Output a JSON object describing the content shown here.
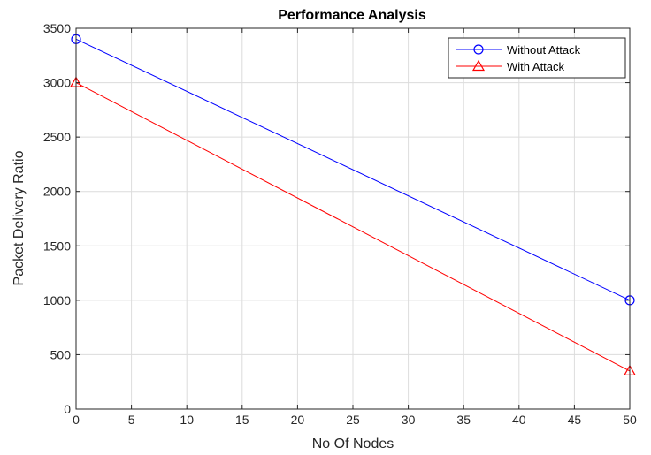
{
  "chart_data": {
    "type": "line",
    "title": "Performance Analysis",
    "xlabel": "No Of Nodes",
    "ylabel": "Packet Delivery Ratio",
    "xlim": [
      0,
      50
    ],
    "ylim": [
      0,
      3500
    ],
    "xticks": [
      0,
      5,
      10,
      15,
      20,
      25,
      30,
      35,
      40,
      45,
      50
    ],
    "yticks": [
      0,
      500,
      1000,
      1500,
      2000,
      2500,
      3000,
      3500
    ],
    "grid": true,
    "legend_position": "top-right",
    "series": [
      {
        "name": "Without Attack",
        "color": "#0000ff",
        "marker": "circle",
        "x": [
          0,
          50
        ],
        "y": [
          3400,
          1000
        ]
      },
      {
        "name": "With Attack",
        "color": "#ff0000",
        "marker": "triangle",
        "x": [
          0,
          50
        ],
        "y": [
          3000,
          350
        ]
      }
    ]
  }
}
